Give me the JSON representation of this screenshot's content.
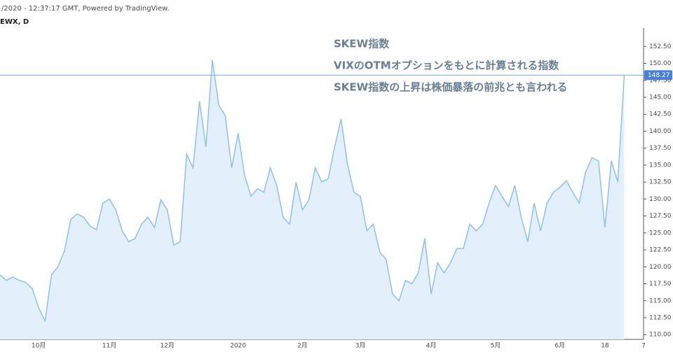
{
  "header": {
    "timestamp": "/2020 - 12:37:17 GMT, Powered by TradingView.",
    "symbol": "EWX, D"
  },
  "chart_data": {
    "type": "area",
    "annotations": [
      "SKEW指数",
      "VIXのOTMオプションをもとに計算される指数",
      "SKEW指数の上昇は株価暴落の前兆とも言われる"
    ],
    "color": "#8fc1e8",
    "fill": "#e3f0fb",
    "categories": [
      null,
      null,
      null,
      null,
      null,
      null,
      "10月",
      null,
      null,
      null,
      null,
      null,
      null,
      null,
      null,
      null,
      null,
      "11月",
      null,
      null,
      null,
      null,
      null,
      null,
      null,
      null,
      "12月",
      null,
      null,
      null,
      null,
      null,
      null,
      null,
      null,
      null,
      null,
      "2020",
      null,
      null,
      null,
      null,
      null,
      null,
      null,
      null,
      null,
      "2月",
      null,
      null,
      null,
      null,
      null,
      null,
      null,
      null,
      "3月",
      null,
      null,
      null,
      null,
      null,
      null,
      null,
      null,
      null,
      null,
      "4月",
      null,
      null,
      null,
      null,
      null,
      null,
      null,
      null,
      null,
      "5月",
      null,
      null,
      null,
      null,
      null,
      null,
      null,
      null,
      null,
      "6月",
      null,
      null,
      null,
      null,
      null,
      null,
      "18",
      null,
      null,
      null,
      null,
      null,
      "7"
    ],
    "values": [
      118.8,
      118,
      118.5,
      118,
      117.7,
      116.8,
      114,
      112,
      118.8,
      120,
      122.3,
      127,
      127.8,
      127.3,
      126,
      125.5,
      129.4,
      130,
      128.4,
      125.3,
      123.7,
      124.2,
      126.3,
      127.3,
      125.8,
      129.9,
      128.4,
      123.2,
      123.7,
      136.6,
      134.6,
      144.4,
      137.7,
      150.5,
      143.8,
      142.3,
      134.6,
      139.7,
      133.5,
      130.4,
      131.5,
      131,
      134.6,
      132,
      127.3,
      126.3,
      132.5,
      128.4,
      129.9,
      134.6,
      132.5,
      133,
      137.7,
      141.8,
      135.1,
      131,
      130.4,
      125.3,
      126.3,
      122.2,
      121.1,
      116,
      115,
      118,
      117.5,
      119.1,
      124.2,
      116,
      120.6,
      119.1,
      120.6,
      122.7,
      122.7,
      126.3,
      125.3,
      126.3,
      129.4,
      132,
      130.4,
      128.9,
      132,
      127.3,
      123.7,
      129.4,
      125.3,
      129.4,
      131,
      131.7,
      132.7,
      131,
      129.4,
      134,
      136.1,
      135.6,
      125.8,
      135.6,
      132.5,
      148.27,
      null,
      null,
      null
    ],
    "ylim": [
      109.3,
      154.7
    ],
    "yticks": [
      {
        "value": 110,
        "label": "110.00"
      },
      {
        "value": 112.5,
        "label": "112.50"
      },
      {
        "value": 115,
        "label": "115.00"
      },
      {
        "value": 117.5,
        "label": "117.50"
      },
      {
        "value": 120,
        "label": "120.00"
      },
      {
        "value": 122.5,
        "label": "122.50"
      },
      {
        "value": 125,
        "label": "125.00"
      },
      {
        "value": 127.5,
        "label": "127.50"
      },
      {
        "value": 130,
        "label": "130.00"
      },
      {
        "value": 132.5,
        "label": "132.50"
      },
      {
        "value": 135,
        "label": "135.00"
      },
      {
        "value": 137.5,
        "label": "137.50"
      },
      {
        "value": 140,
        "label": "140.00"
      },
      {
        "value": 142.5,
        "label": "142.50"
      },
      {
        "value": 145,
        "label": "145.00"
      },
      {
        "value": 147.5,
        "label": "147.50"
      },
      {
        "value": 150,
        "label": "150.00"
      },
      {
        "value": 152.5,
        "label": "152.50"
      }
    ],
    "last_value_index": 97
  }
}
